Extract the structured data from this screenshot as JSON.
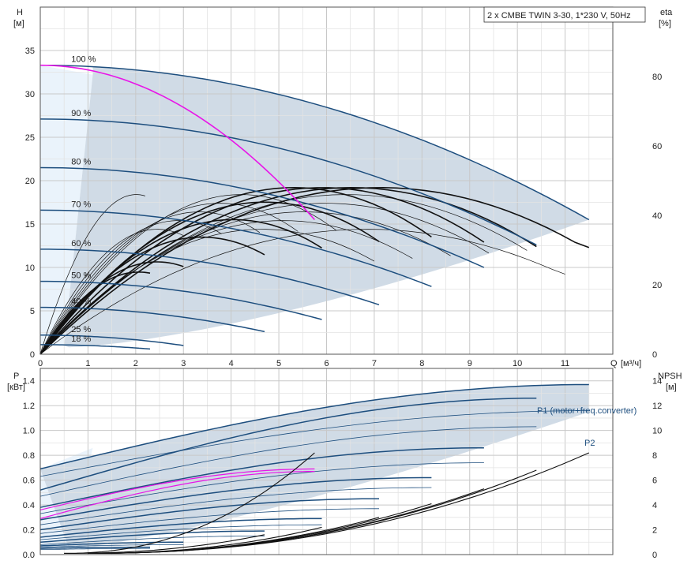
{
  "chart_data": [
    {
      "type": "line",
      "title": "2 x CMBE TWIN 3-30, 1*230 V, 50Hz",
      "ylabel": "H",
      "yunit": "[м]",
      "y2label": "eta",
      "y2unit": "[%]",
      "xlabel": "Q",
      "xunit": "[м³/ч]",
      "xlim": [
        0,
        12
      ],
      "ylim": [
        0,
        40
      ],
      "y2lim": [
        0,
        100
      ],
      "xticks": [
        0,
        1,
        2,
        3,
        4,
        5,
        6,
        7,
        8,
        9,
        10,
        11
      ],
      "yticks": [
        0,
        5,
        10,
        15,
        20,
        25,
        30,
        35
      ],
      "y2ticks": [
        0,
        20,
        40,
        60,
        80
      ],
      "grid": true,
      "colors": {
        "head": "#1d4e7e",
        "eta": "#111111",
        "highlight": "#e815e8",
        "envelope": "#d0dbe6",
        "left_band": "#eaf3fb"
      },
      "head_curves": [
        {
          "label": "100 %",
          "H0": 33.3,
          "Qmax": 11.5,
          "Hend": 15.5
        },
        {
          "label": "90 %",
          "H0": 27.1,
          "Qmax": 10.4,
          "Hend": 12.6
        },
        {
          "label": "80 %",
          "H0": 21.5,
          "Qmax": 9.3,
          "Hend": 10.0
        },
        {
          "label": "70 %",
          "H0": 16.6,
          "Qmax": 8.2,
          "Hend": 7.8
        },
        {
          "label": "60 %",
          "H0": 12.1,
          "Qmax": 7.1,
          "Hend": 5.7
        },
        {
          "label": "50 %",
          "H0": 8.4,
          "Qmax": 5.9,
          "Hend": 4.0
        },
        {
          "label": "40 %",
          "H0": 5.4,
          "Qmax": 4.7,
          "Hend": 2.6
        },
        {
          "label": "25 %",
          "H0": 2.2,
          "Qmax": 3.0,
          "Hend": 1.0
        },
        {
          "label": "18 %",
          "H0": 1.1,
          "Qmax": 2.3,
          "Hend": 0.6
        }
      ],
      "highlight_curve": {
        "H0": 33.3,
        "Qmax": 5.75,
        "Hend": 15.5
      },
      "eta_max": 48
    },
    {
      "type": "line",
      "ylabel": "P",
      "yunit": "[кВт]",
      "y2label": "NPSH",
      "y2unit": "[м]",
      "xlim": [
        0,
        12
      ],
      "ylim": [
        0,
        1.5
      ],
      "y2lim": [
        0,
        15
      ],
      "yticks": [
        "0.0",
        "0.2",
        "0.4",
        "0.6",
        "0.8",
        "1.0",
        "1.2",
        "1.4"
      ],
      "y2ticks": [
        0,
        2,
        4,
        6,
        8,
        10,
        12,
        14
      ],
      "grid": true,
      "series_labels": [
        "P1 (motor+freq.converter)",
        "P2"
      ],
      "p1_curves": [
        {
          "P0": 0.69,
          "Pend": 1.37,
          "Qmax": 11.5
        },
        {
          "P0": 0.52,
          "Pend": 1.26,
          "Qmax": 10.4
        },
        {
          "P0": 0.38,
          "Pend": 0.86,
          "Qmax": 9.3
        },
        {
          "P0": 0.28,
          "Pend": 0.62,
          "Qmax": 8.2
        },
        {
          "P0": 0.2,
          "Pend": 0.45,
          "Qmax": 7.1
        },
        {
          "P0": 0.14,
          "Pend": 0.29,
          "Qmax": 5.9
        },
        {
          "P0": 0.1,
          "Pend": 0.19,
          "Qmax": 4.7
        },
        {
          "P0": 0.07,
          "Pend": 0.1,
          "Qmax": 3.0
        },
        {
          "P0": 0.05,
          "Pend": 0.06,
          "Qmax": 2.3
        }
      ],
      "p2_curves": [
        {
          "P0": 0.63,
          "Pend": 1.16,
          "Qmax": 11.5
        },
        {
          "P0": 0.47,
          "Pend": 1.03,
          "Qmax": 10.4
        },
        {
          "P0": 0.33,
          "Pend": 0.74,
          "Qmax": 9.3
        },
        {
          "P0": 0.24,
          "Pend": 0.54,
          "Qmax": 8.2
        },
        {
          "P0": 0.17,
          "Pend": 0.37,
          "Qmax": 7.1
        },
        {
          "P0": 0.12,
          "Pend": 0.24,
          "Qmax": 5.9
        },
        {
          "P0": 0.08,
          "Pend": 0.15,
          "Qmax": 4.7
        },
        {
          "P0": 0.06,
          "Pend": 0.08,
          "Qmax": 3.0
        },
        {
          "P0": 0.04,
          "Pend": 0.05,
          "Qmax": 2.3
        }
      ],
      "p_highlight": [
        {
          "P0": 0.36,
          "Pend": 0.69,
          "Qmax": 5.75
        },
        {
          "P0": 0.29,
          "Pend": 0.67,
          "Qmax": 5.75
        }
      ],
      "npsh_curves": [
        {
          "Qstart": 1.0,
          "Qend": 11.5,
          "Nend": 8.2
        },
        {
          "Qstart": 1.0,
          "Qend": 10.4,
          "Nend": 6.8
        },
        {
          "Qstart": 1.0,
          "Qend": 9.3,
          "Nend": 5.3
        },
        {
          "Qstart": 1.0,
          "Qend": 8.2,
          "Nend": 4.1
        },
        {
          "Qstart": 1.0,
          "Qend": 7.1,
          "Nend": 3.0
        },
        {
          "Qstart": 1.0,
          "Qend": 5.9,
          "Nend": 2.2
        },
        {
          "Qstart": 0.5,
          "Qend": 5.75,
          "Nend": 8.2
        },
        {
          "Qstart": 0.5,
          "Qend": 4.7,
          "Nend": 1.6
        }
      ]
    }
  ]
}
